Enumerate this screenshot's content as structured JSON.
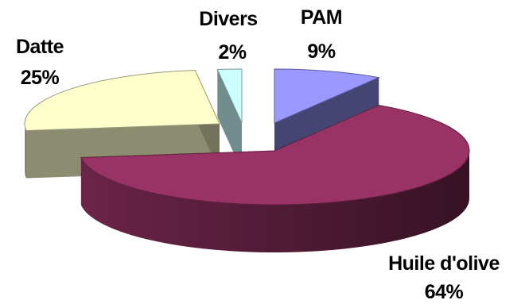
{
  "chart_data": {
    "type": "pie",
    "style": "3d-exploded",
    "slices": [
      {
        "label": "PAM",
        "value": 9,
        "value_label": "9%",
        "color": "#9999ff"
      },
      {
        "label": "Huile d'olive",
        "value": 64,
        "value_label": "64%",
        "color": "#993366"
      },
      {
        "label": "Datte",
        "value": 25,
        "value_label": "25%",
        "color": "#ffffcc"
      },
      {
        "label": "Divers",
        "value": 2,
        "value_label": "2%",
        "color": "#ccffff"
      }
    ],
    "title": "",
    "legend": "none"
  }
}
